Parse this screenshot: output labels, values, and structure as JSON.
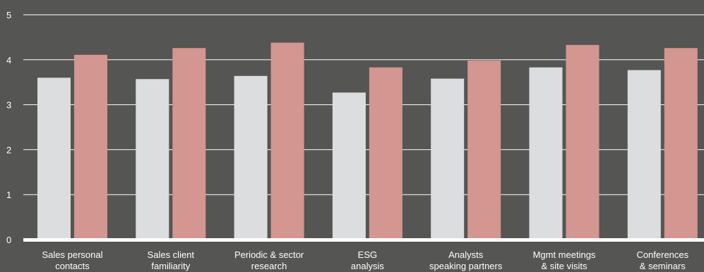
{
  "chart_data": {
    "type": "bar",
    "title": "",
    "xlabel": "",
    "ylabel": "",
    "ylim": [
      0,
      5
    ],
    "yticks": [
      "0",
      "1",
      "2",
      "3",
      "4",
      "5"
    ],
    "grid": true,
    "legend": "none",
    "categories": [
      [
        "Sales personal",
        "contacts"
      ],
      [
        "Sales client",
        "familiarity"
      ],
      [
        "Periodic & sector",
        "research"
      ],
      [
        "ESG",
        "analysis"
      ],
      [
        "Analysts",
        "speaking partners"
      ],
      [
        "Mgmt meetings",
        "& site visits"
      ],
      [
        "Conferences",
        "& seminars"
      ]
    ],
    "series": [
      {
        "values": [
          3.6,
          3.57,
          3.64,
          3.27,
          3.58,
          3.83,
          3.77
        ],
        "color": "#dcdddf"
      },
      {
        "values": [
          4.11,
          4.26,
          4.38,
          3.83,
          3.98,
          4.33,
          4.26
        ],
        "color": "#d39690"
      }
    ],
    "colors": {
      "background": "#555553",
      "gridline": "#ffffff",
      "text": "#ffffff"
    }
  }
}
